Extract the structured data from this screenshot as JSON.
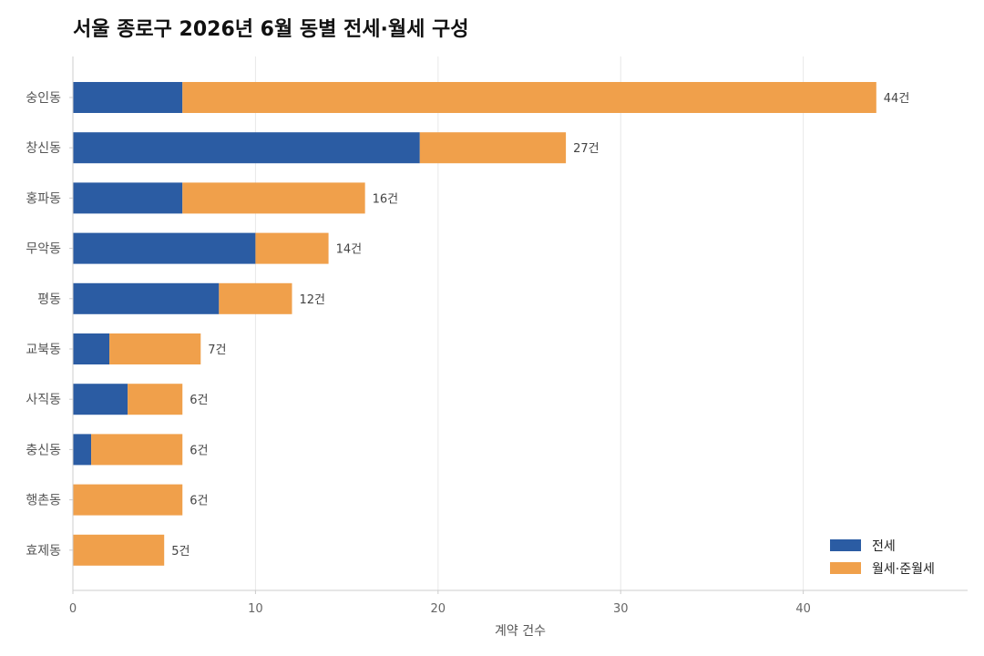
{
  "chart_data": {
    "type": "bar",
    "orientation": "horizontal",
    "stacked": true,
    "title": "서울 종로구 2026년 6월 동별 전세·월세 구성",
    "xlabel": "계약 건수",
    "ylabel": "",
    "xlim": [
      0,
      49
    ],
    "xticks": [
      0,
      10,
      20,
      30,
      40
    ],
    "grid": "vertical",
    "legend_position": "bottom-right",
    "categories": [
      "숭인동",
      "창신동",
      "홍파동",
      "무악동",
      "평동",
      "교북동",
      "사직동",
      "충신동",
      "행촌동",
      "효제동"
    ],
    "series": [
      {
        "name": "전세",
        "color": "#2b5ca3",
        "values": [
          6,
          19,
          6,
          10,
          8,
          2,
          3,
          1,
          0,
          0
        ]
      },
      {
        "name": "월세·준월세",
        "color": "#f0a04b",
        "values": [
          38,
          8,
          10,
          4,
          4,
          5,
          3,
          5,
          6,
          5
        ]
      }
    ],
    "totals": [
      44,
      27,
      16,
      14,
      12,
      7,
      6,
      6,
      6,
      5
    ],
    "total_labels": [
      "44건",
      "27건",
      "16건",
      "14건",
      "12건",
      "7건",
      "6건",
      "6건",
      "6건",
      "5건"
    ]
  }
}
